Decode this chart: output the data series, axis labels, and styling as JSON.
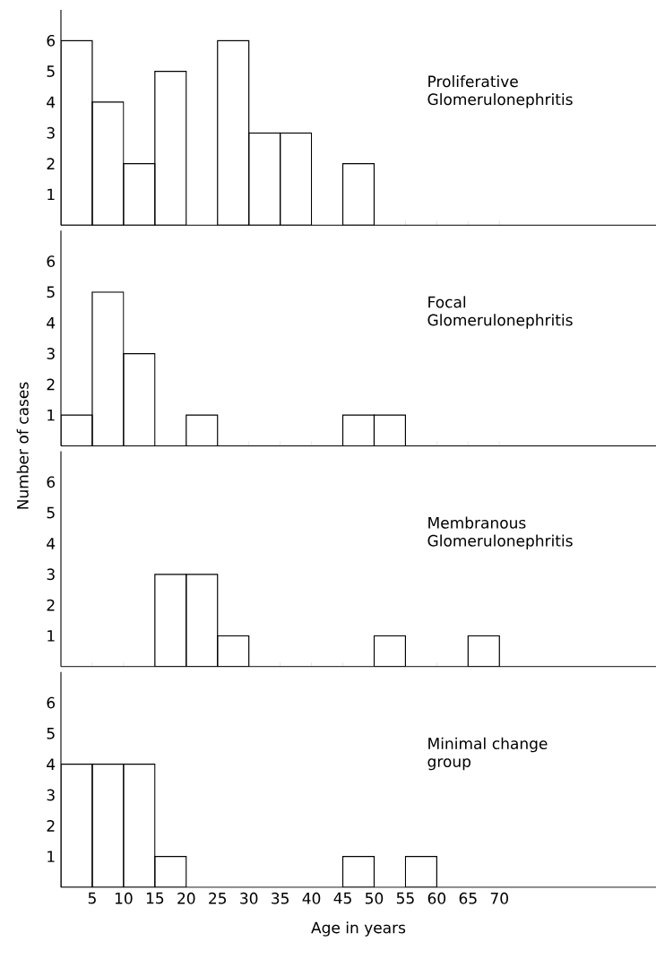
{
  "chart_data": [
    {
      "type": "histogram",
      "title": "Proliferative Glomerulonephritis",
      "color": "#000000",
      "bins": [
        0,
        5,
        10,
        15,
        20,
        25,
        30,
        35,
        40,
        45,
        50,
        55,
        60,
        65,
        70
      ],
      "values": [
        6,
        4,
        2,
        5,
        0,
        6,
        3,
        3,
        0,
        2,
        0,
        0,
        0,
        0
      ],
      "xlim": [
        0,
        95
      ],
      "xticks": [
        5,
        10,
        15,
        20,
        25,
        30,
        35,
        40,
        45,
        50,
        55,
        60,
        65,
        70
      ],
      "ylim": [
        0,
        7
      ],
      "yticks": [
        1,
        2,
        3,
        4,
        5,
        6
      ],
      "tick_labels": "y"
    },
    {
      "type": "histogram",
      "title": "Focal Glomerulonephritis",
      "ylabel": "Number of cases",
      "color": "#000000",
      "bins": [
        0,
        5,
        10,
        15,
        20,
        25,
        30,
        35,
        40,
        45,
        50,
        55,
        60,
        65,
        70
      ],
      "values": [
        1,
        5,
        3,
        0,
        1,
        0,
        0,
        0,
        0,
        1,
        1,
        0,
        0,
        0
      ],
      "xlim": [
        0,
        95
      ],
      "xticks": [
        5,
        10,
        15,
        20,
        25,
        30,
        35,
        40,
        45,
        50,
        55,
        60,
        65,
        70
      ],
      "ylim": [
        0,
        7
      ],
      "yticks": [
        1,
        2,
        3,
        4,
        5,
        6
      ],
      "tick_labels": "y"
    },
    {
      "type": "histogram",
      "title": "Membranous Glomerulonephritis",
      "color": "#000000",
      "bins": [
        0,
        5,
        10,
        15,
        20,
        25,
        30,
        35,
        40,
        45,
        50,
        55,
        60,
        65,
        70
      ],
      "values": [
        0,
        0,
        0,
        3,
        3,
        1,
        0,
        0,
        0,
        0,
        1,
        0,
        0,
        1
      ],
      "xlim": [
        0,
        95
      ],
      "xticks": [
        5,
        10,
        15,
        20,
        25,
        30,
        35,
        40,
        45,
        50,
        55,
        60,
        65,
        70
      ],
      "ylim": [
        0,
        7
      ],
      "yticks": [
        1,
        2,
        3,
        4,
        5,
        6
      ],
      "tick_labels": "y"
    },
    {
      "type": "histogram",
      "title": "Minimal change group",
      "xlabel": "Age in years",
      "color": "#000000",
      "bins": [
        0,
        5,
        10,
        15,
        20,
        25,
        30,
        35,
        40,
        45,
        50,
        55,
        60,
        65,
        70
      ],
      "values": [
        4,
        4,
        4,
        1,
        0,
        0,
        0,
        0,
        0,
        1,
        0,
        1,
        0,
        0
      ],
      "xlim": [
        0,
        95
      ],
      "xticks": [
        5,
        10,
        15,
        20,
        25,
        30,
        35,
        40,
        45,
        50,
        55,
        60,
        65,
        70
      ],
      "ylim": [
        0,
        7
      ],
      "yticks": [
        1,
        2,
        3,
        4,
        5,
        6
      ]
    }
  ]
}
